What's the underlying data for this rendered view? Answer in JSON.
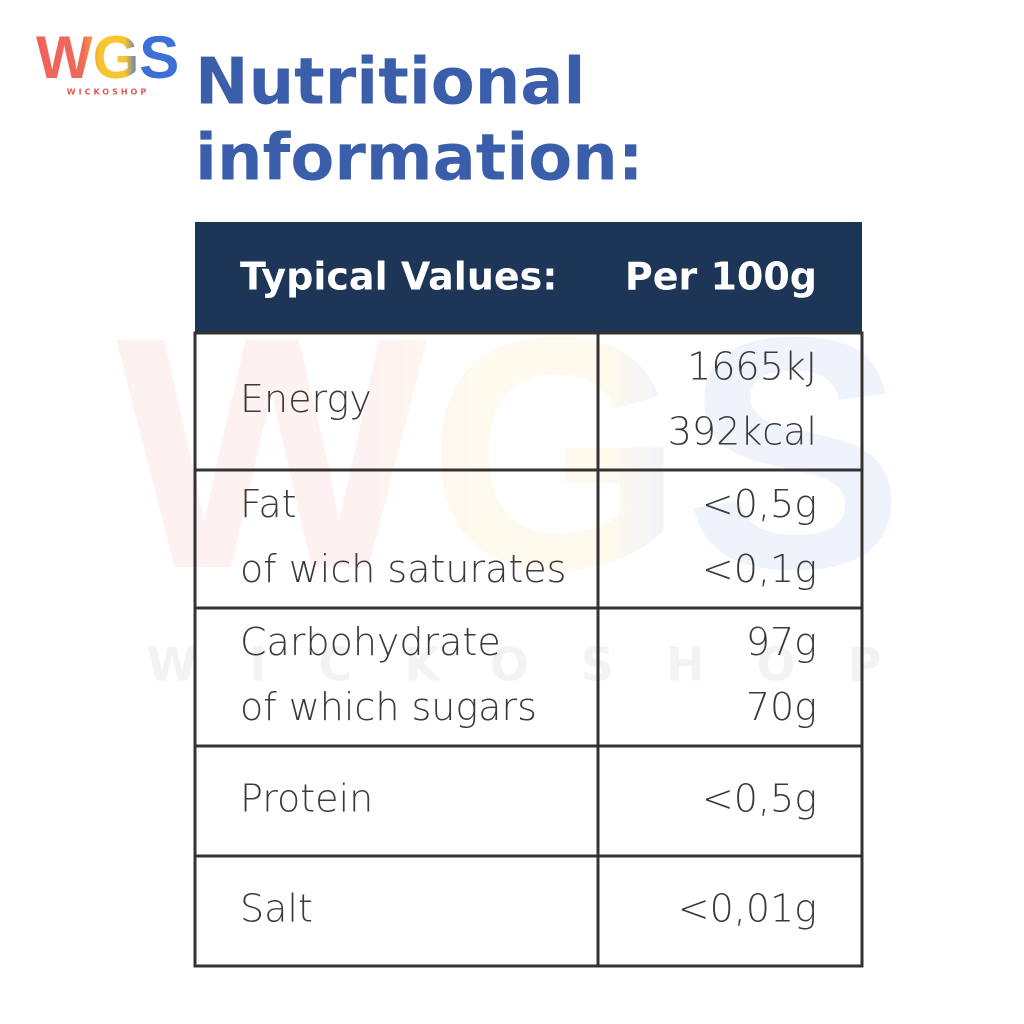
{
  "logo": {
    "name": "WGS",
    "tagline": "WICKOSHOP"
  },
  "title": [
    "Nutritional",
    "information:"
  ],
  "table": {
    "header": [
      "Typical Values:",
      "Per 100g"
    ],
    "rows": [
      [
        [
          "Energy"
        ],
        [
          "1665kJ",
          "392kcal"
        ]
      ],
      [
        [
          "Fat",
          "of wich saturates"
        ],
        [
          "<0,5g",
          "<0,1g"
        ]
      ],
      [
        [
          "Carbohydrate",
          "of which sugars"
        ],
        [
          "97g",
          "70g"
        ]
      ],
      [
        [
          "Protein"
        ],
        [
          "<0,5g"
        ]
      ],
      [
        [
          "Salt"
        ],
        [
          "<0,01g"
        ]
      ]
    ]
  }
}
